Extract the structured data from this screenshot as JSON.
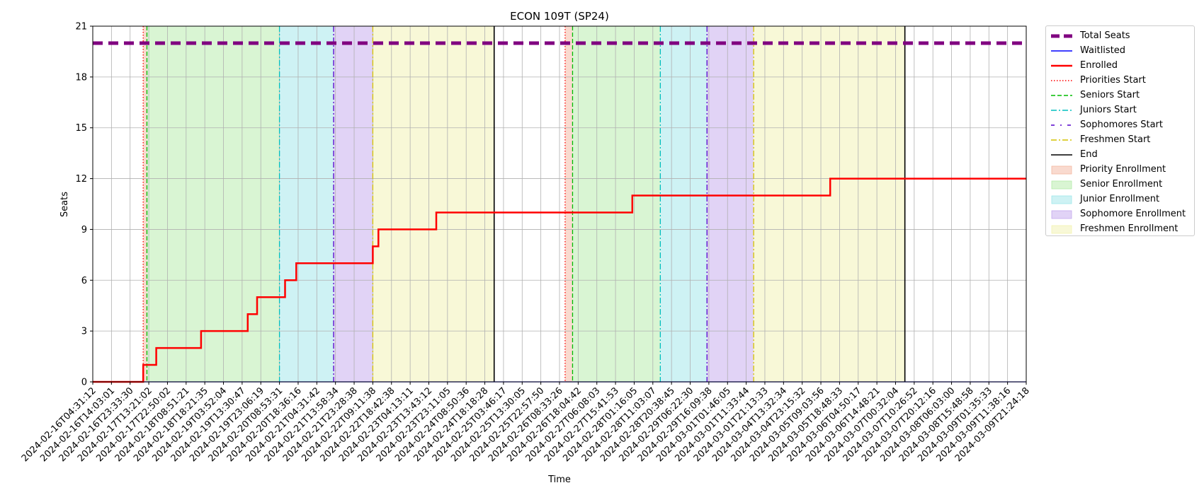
{
  "chart_data": {
    "type": "line",
    "title": "ECON 109T (SP24)",
    "xlabel": "Time",
    "ylabel": "Seats",
    "ylim": [
      0,
      21
    ],
    "y_ticks": [
      "0",
      "3",
      "6",
      "9",
      "12",
      "15",
      "18",
      "21"
    ],
    "x_range": [
      "2024-02-16T04:31:12",
      "2024-03-09T21:24:18"
    ],
    "x_tick_labels": [
      "2024-02-16T04:31:12",
      "2024-02-16T14:03:01",
      "2024-02-16T23:33:30",
      "2024-02-17T13:21:02",
      "2024-02-17T22:50:02",
      "2024-02-18T08:51:21",
      "2024-02-18T18:21:35",
      "2024-02-19T03:52:04",
      "2024-02-19T13:30:47",
      "2024-02-19T23:06:19",
      "2024-02-20T08:53:31",
      "2024-02-20T18:36:16",
      "2024-02-21T04:31:42",
      "2024-02-21T13:58:34",
      "2024-02-21T23:28:38",
      "2024-02-22T09:11:38",
      "2024-02-22T18:42:38",
      "2024-02-23T04:13:11",
      "2024-02-23T13:43:12",
      "2024-02-23T23:11:05",
      "2024-02-24T08:50:36",
      "2024-02-24T18:18:28",
      "2024-02-25T03:46:17",
      "2024-02-25T13:30:05",
      "2024-02-25T22:57:50",
      "2024-02-26T08:33:26",
      "2024-02-26T18:04:42",
      "2024-02-27T06:08:03",
      "2024-02-27T15:41:53",
      "2024-02-28T01:16:05",
      "2024-02-28T11:03:07",
      "2024-02-28T20:38:45",
      "2024-02-29T06:22:30",
      "2024-02-29T16:09:38",
      "2024-03-01T01:46:05",
      "2024-03-01T11:33:44",
      "2024-03-01T21:13:33",
      "2024-03-04T13:32:34",
      "2024-03-04T23:15:32",
      "2024-03-05T09:03:56",
      "2024-03-05T18:48:33",
      "2024-03-06T04:50:17",
      "2024-03-06T14:48:21",
      "2024-03-07T00:32:04",
      "2024-03-07T10:26:52",
      "2024-03-07T20:12:16",
      "2024-03-08T06:03:00",
      "2024-03-08T15:48:58",
      "2024-03-09T01:35:33",
      "2024-03-09T11:38:16",
      "2024-03-09T21:24:18"
    ],
    "grid": true,
    "legend_position": "outside right, top",
    "series": [
      {
        "name": "Total Seats",
        "style": "thick dashed",
        "color": "#800080",
        "x": [
          0,
          50
        ],
        "y": [
          20,
          20
        ]
      },
      {
        "name": "Waitlisted",
        "style": "solid",
        "color": "#0000ff",
        "x": [
          0,
          50
        ],
        "y": [
          0,
          0
        ]
      },
      {
        "name": "Enrolled",
        "style": "solid step",
        "color": "#ff0000",
        "x": [
          0,
          2.7,
          2.7,
          3.4,
          3.4,
          5.8,
          5.8,
          8.3,
          8.3,
          8.8,
          8.8,
          10.3,
          10.3,
          10.9,
          10.9,
          15.0,
          15.0,
          15.3,
          15.3,
          18.4,
          18.4,
          28.9,
          28.9,
          39.5,
          39.5,
          50
        ],
        "y": [
          0,
          0,
          1,
          1,
          2,
          2,
          3,
          3,
          4,
          4,
          5,
          5,
          6,
          6,
          7,
          7,
          8,
          8,
          9,
          9,
          10,
          10,
          11,
          11,
          12,
          12
        ]
      }
    ],
    "vertical_markers": [
      {
        "name": "Priorities Start",
        "color": "#ff0000",
        "style": "dotted",
        "x": [
          2.7,
          25.3
        ]
      },
      {
        "name": "Seniors Start",
        "color": "#00bb00",
        "style": "dashed",
        "x": [
          2.9,
          25.7
        ]
      },
      {
        "name": "Juniors Start",
        "color": "#00bfbf",
        "style": "dashdot",
        "x": [
          10.0,
          30.4
        ]
      },
      {
        "name": "Sophomores Start",
        "color": "#5500cc",
        "style": "dashdot",
        "x": [
          12.9,
          32.9
        ]
      },
      {
        "name": "Freshmen Start",
        "color": "#d4c200",
        "style": "dashdot",
        "x": [
          15.0,
          35.4
        ]
      },
      {
        "name": "End",
        "color": "#000000",
        "style": "solid",
        "x": [
          21.5,
          43.5
        ]
      }
    ],
    "shaded_regions": [
      {
        "name": "Priority Enrollment",
        "color": "#f4b6a0",
        "alpha": 0.5,
        "ranges": [
          [
            2.7,
            2.9
          ],
          [
            25.3,
            25.7
          ]
        ]
      },
      {
        "name": "Senior Enrollment",
        "color": "#b3eba8",
        "alpha": 0.5,
        "ranges": [
          [
            2.9,
            10.0
          ],
          [
            25.7,
            30.4
          ]
        ]
      },
      {
        "name": "Junior Enrollment",
        "color": "#9de6ea",
        "alpha": 0.5,
        "ranges": [
          [
            10.0,
            12.9
          ],
          [
            30.4,
            32.9
          ]
        ]
      },
      {
        "name": "Sophomore Enrollment",
        "color": "#c4a8ed",
        "alpha": 0.5,
        "ranges": [
          [
            12.9,
            15.0
          ],
          [
            32.9,
            35.4
          ]
        ]
      },
      {
        "name": "Freshmen Enrollment",
        "color": "#f2f2b0",
        "alpha": 0.5,
        "ranges": [
          [
            15.0,
            21.5
          ],
          [
            35.4,
            43.5
          ]
        ]
      }
    ]
  }
}
